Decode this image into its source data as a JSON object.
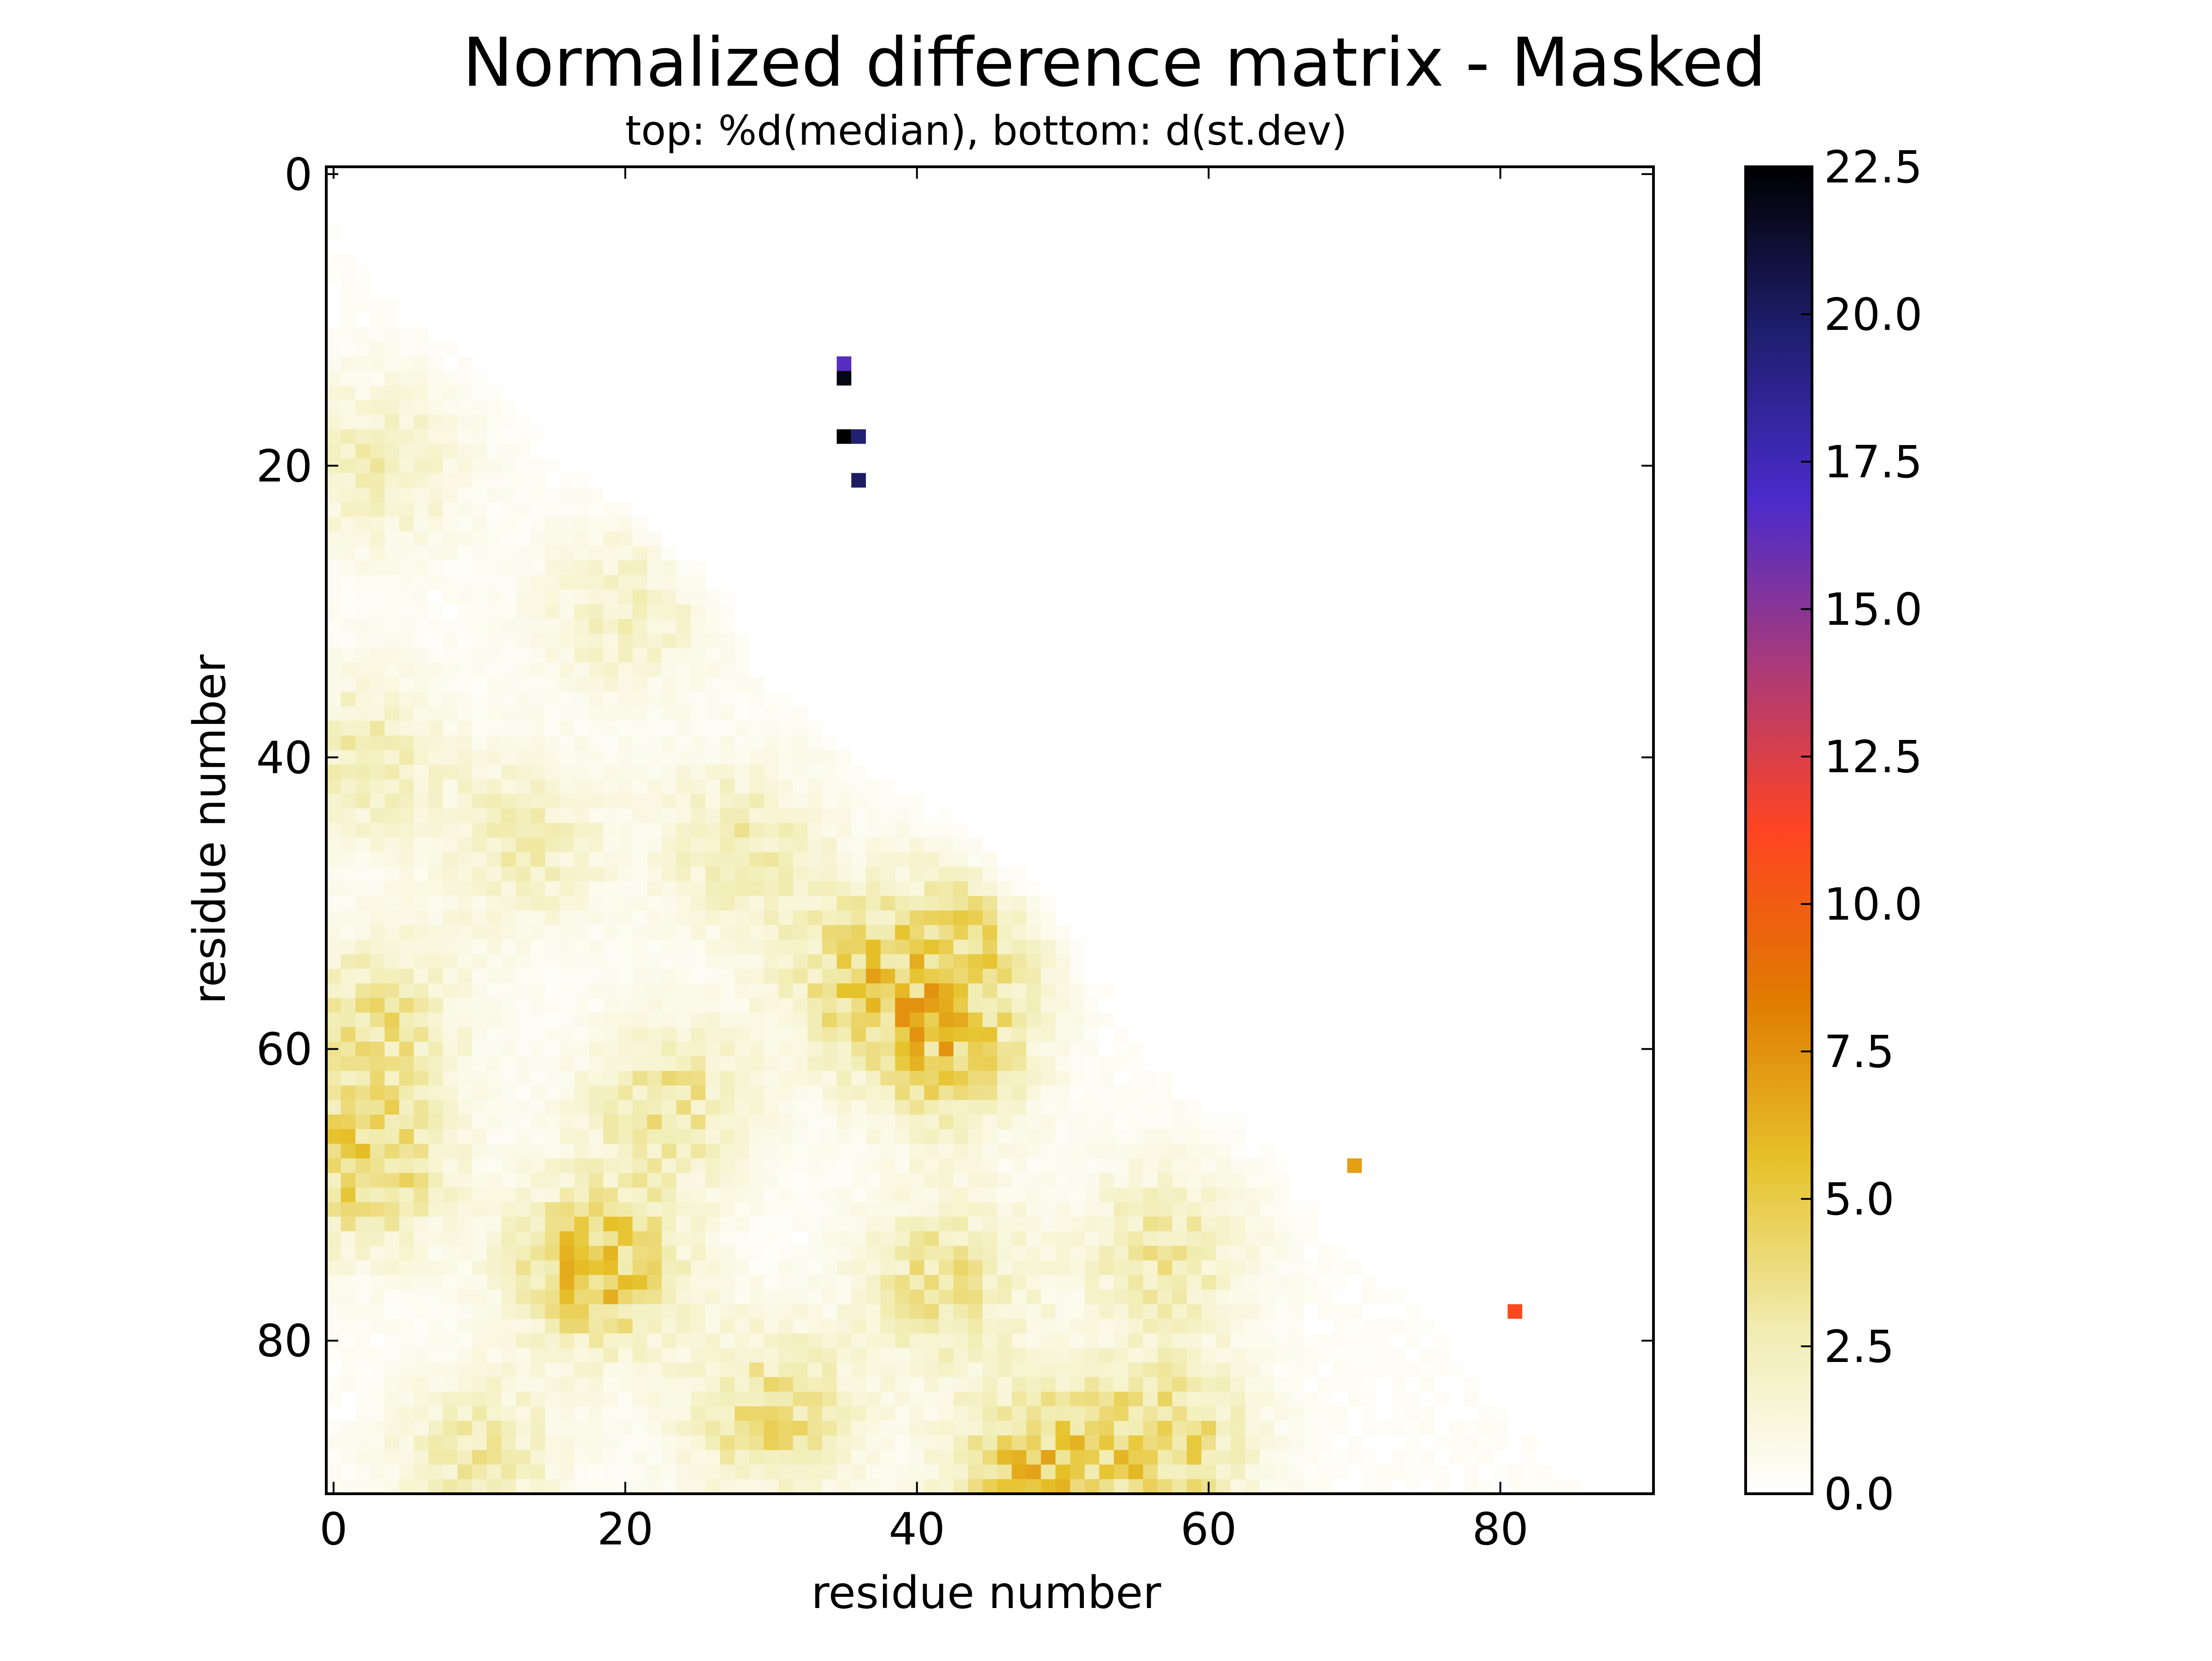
{
  "chart_data": {
    "type": "heatmap",
    "title": "Normalized difference matrix - Masked",
    "subtitle": "top: %d(median),  bottom: d(st.dev)",
    "xlabel": "residue number",
    "ylabel": "residue number",
    "xlim": [
      -0.5,
      90.5
    ],
    "ylim": [
      90.5,
      -0.5
    ],
    "x_ticks": [
      0,
      20,
      40,
      60,
      80
    ],
    "y_ticks": [
      0,
      20,
      40,
      60,
      80
    ],
    "n_residues": 91,
    "y_axis_inverted": true,
    "colorbar": {
      "range": [
        0.0,
        22.5
      ],
      "ticks": [
        "0.0",
        "2.5",
        "5.0",
        "7.5",
        "10.0",
        "12.5",
        "15.0",
        "17.5",
        "20.0",
        "22.5"
      ],
      "colormap": [
        "#ffffff",
        "#f1ecb0",
        "#e6c22a",
        "#e07a00",
        "#ff4422",
        "#a93a7a",
        "#4a2bcc",
        "#1e1f6e",
        "#000000"
      ]
    },
    "upper_triangle_points": [
      {
        "x": 35,
        "y": 13,
        "value": 16.5
      },
      {
        "x": 35,
        "y": 14,
        "value": 22.0
      },
      {
        "x": 35,
        "y": 18,
        "value": 22.5
      },
      {
        "x": 36,
        "y": 18,
        "value": 19.5
      },
      {
        "x": 36,
        "y": 21,
        "value": 20.0
      },
      {
        "x": 70,
        "y": 68,
        "value": 7.0
      },
      {
        "x": 81,
        "y": 78,
        "value": 11.0
      }
    ],
    "lower_triangle_hotspots": [
      {
        "x": 3,
        "y": 20,
        "value": 2.5
      },
      {
        "x": 2,
        "y": 40,
        "value": 2.8
      },
      {
        "x": 3,
        "y": 58,
        "value": 3.6
      },
      {
        "x": 2,
        "y": 68,
        "value": 5.2
      },
      {
        "x": 18,
        "y": 75,
        "value": 6.0
      },
      {
        "x": 23,
        "y": 64,
        "value": 3.6
      },
      {
        "x": 36,
        "y": 55,
        "value": 4.2
      },
      {
        "x": 42,
        "y": 60,
        "value": 5.0
      },
      {
        "x": 44,
        "y": 52,
        "value": 3.4
      },
      {
        "x": 30,
        "y": 85,
        "value": 4.2
      },
      {
        "x": 48,
        "y": 89,
        "value": 5.6
      },
      {
        "x": 57,
        "y": 87,
        "value": 4.8
      },
      {
        "x": 42,
        "y": 76,
        "value": 3.8
      },
      {
        "x": 57,
        "y": 74,
        "value": 3.2
      },
      {
        "x": 28,
        "y": 46,
        "value": 2.8
      },
      {
        "x": 13,
        "y": 46,
        "value": 2.6
      },
      {
        "x": 20,
        "y": 30,
        "value": 2.2
      },
      {
        "x": 10,
        "y": 88,
        "value": 3.0
      }
    ]
  }
}
